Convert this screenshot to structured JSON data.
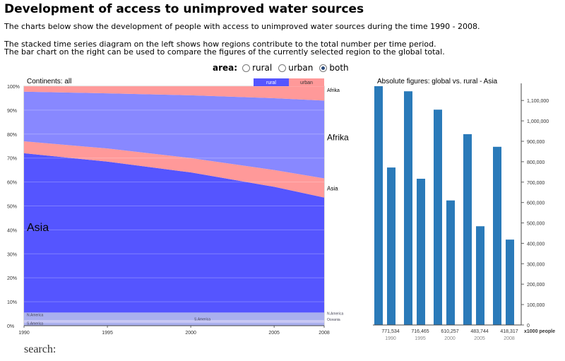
{
  "page": {
    "title": "Development of access to unimproved water sources",
    "intro1": "The charts below show the development of people with access to unimproved water sources during the time 1990 - 2008.",
    "intro2": "The stacked time series diagram on the left shows how regions contribute to the total number per time period.",
    "intro3": "The bar chart on the right can be used to compare the figures of the currently selected region to the global total.",
    "area_label": "area",
    "area_options": [
      "rural",
      "urban",
      "both"
    ],
    "area_selected": "both",
    "search_label": "search:"
  },
  "chart_data": [
    {
      "type": "area",
      "title": "Continents: all",
      "legend": [
        "rural",
        "urban"
      ],
      "legend_placement": "top-right",
      "colors": {
        "rural": "#5555ff",
        "urban": "#ff9999",
        "rural_light": "#8888ff",
        "urban_light": "#ffaaaa",
        "small": "#aab0ee"
      },
      "x": [
        1990,
        1995,
        2000,
        2005,
        2008
      ],
      "x_ticks": [
        "1990",
        "1995",
        "2000",
        "2005",
        "2008"
      ],
      "y_ticks": [
        "0%",
        "10%",
        "20%",
        "30%",
        "40%",
        "50%",
        "60%",
        "70%",
        "80%",
        "90%",
        "100%"
      ],
      "ylim": [
        0,
        100
      ],
      "series": [
        {
          "name": "S.America",
          "band": [
            0,
            1.3
          ],
          "tone": "small"
        },
        {
          "name": "Oceania",
          "band": [
            1.3,
            2.3
          ],
          "tone": "small"
        },
        {
          "name": "N.America",
          "band": [
            2.3,
            5.5
          ],
          "tone": "small"
        },
        {
          "name": "Asia",
          "tone": "rural",
          "upper_rural": [
            72,
            68.5,
            64,
            58,
            53.5
          ]
        },
        {
          "name": "Asia",
          "tone": "urban",
          "upper_urban": [
            77,
            74,
            70,
            65,
            61.5
          ]
        },
        {
          "name": "Afrika",
          "tone": "rural_light",
          "upper_rural": [
            97.7,
            97,
            96.2,
            95,
            94
          ]
        },
        {
          "name": "Afrika",
          "tone": "urban",
          "upper_urban": [
            100,
            100,
            100,
            100,
            100
          ]
        }
      ],
      "labels": {
        "asia_big": "Asia",
        "afrika_big": "Afrika",
        "afrika_small": "Afrika",
        "asia_small": "Asia",
        "n_america": "N.America",
        "s_america": "S.America",
        "oceania": "Oceania"
      }
    },
    {
      "type": "bar",
      "title": "Absolute figures: global vs. rural - Asia",
      "categories": [
        "1990",
        "1995",
        "2000",
        "2005",
        "2008"
      ],
      "series": [
        {
          "name": "global",
          "values": [
            1170000,
            1145000,
            1055000,
            935000,
            873000
          ]
        },
        {
          "name": "rural - Asia",
          "values": [
            771534,
            716465,
            610257,
            483744,
            418317
          ]
        }
      ],
      "value_labels": [
        "771,534",
        "716,465",
        "610,257",
        "483,744",
        "418,317"
      ],
      "y_ticks": [
        "0",
        "100,000",
        "200,000",
        "300,000",
        "400,000",
        "500,000",
        "600,000",
        "700,000",
        "800,000",
        "900,000",
        "1,000,000",
        "1,100,000"
      ],
      "ylim": [
        0,
        1170000
      ],
      "unit_label": "x1000 people",
      "bar_color": "#2a7ab9"
    }
  ]
}
